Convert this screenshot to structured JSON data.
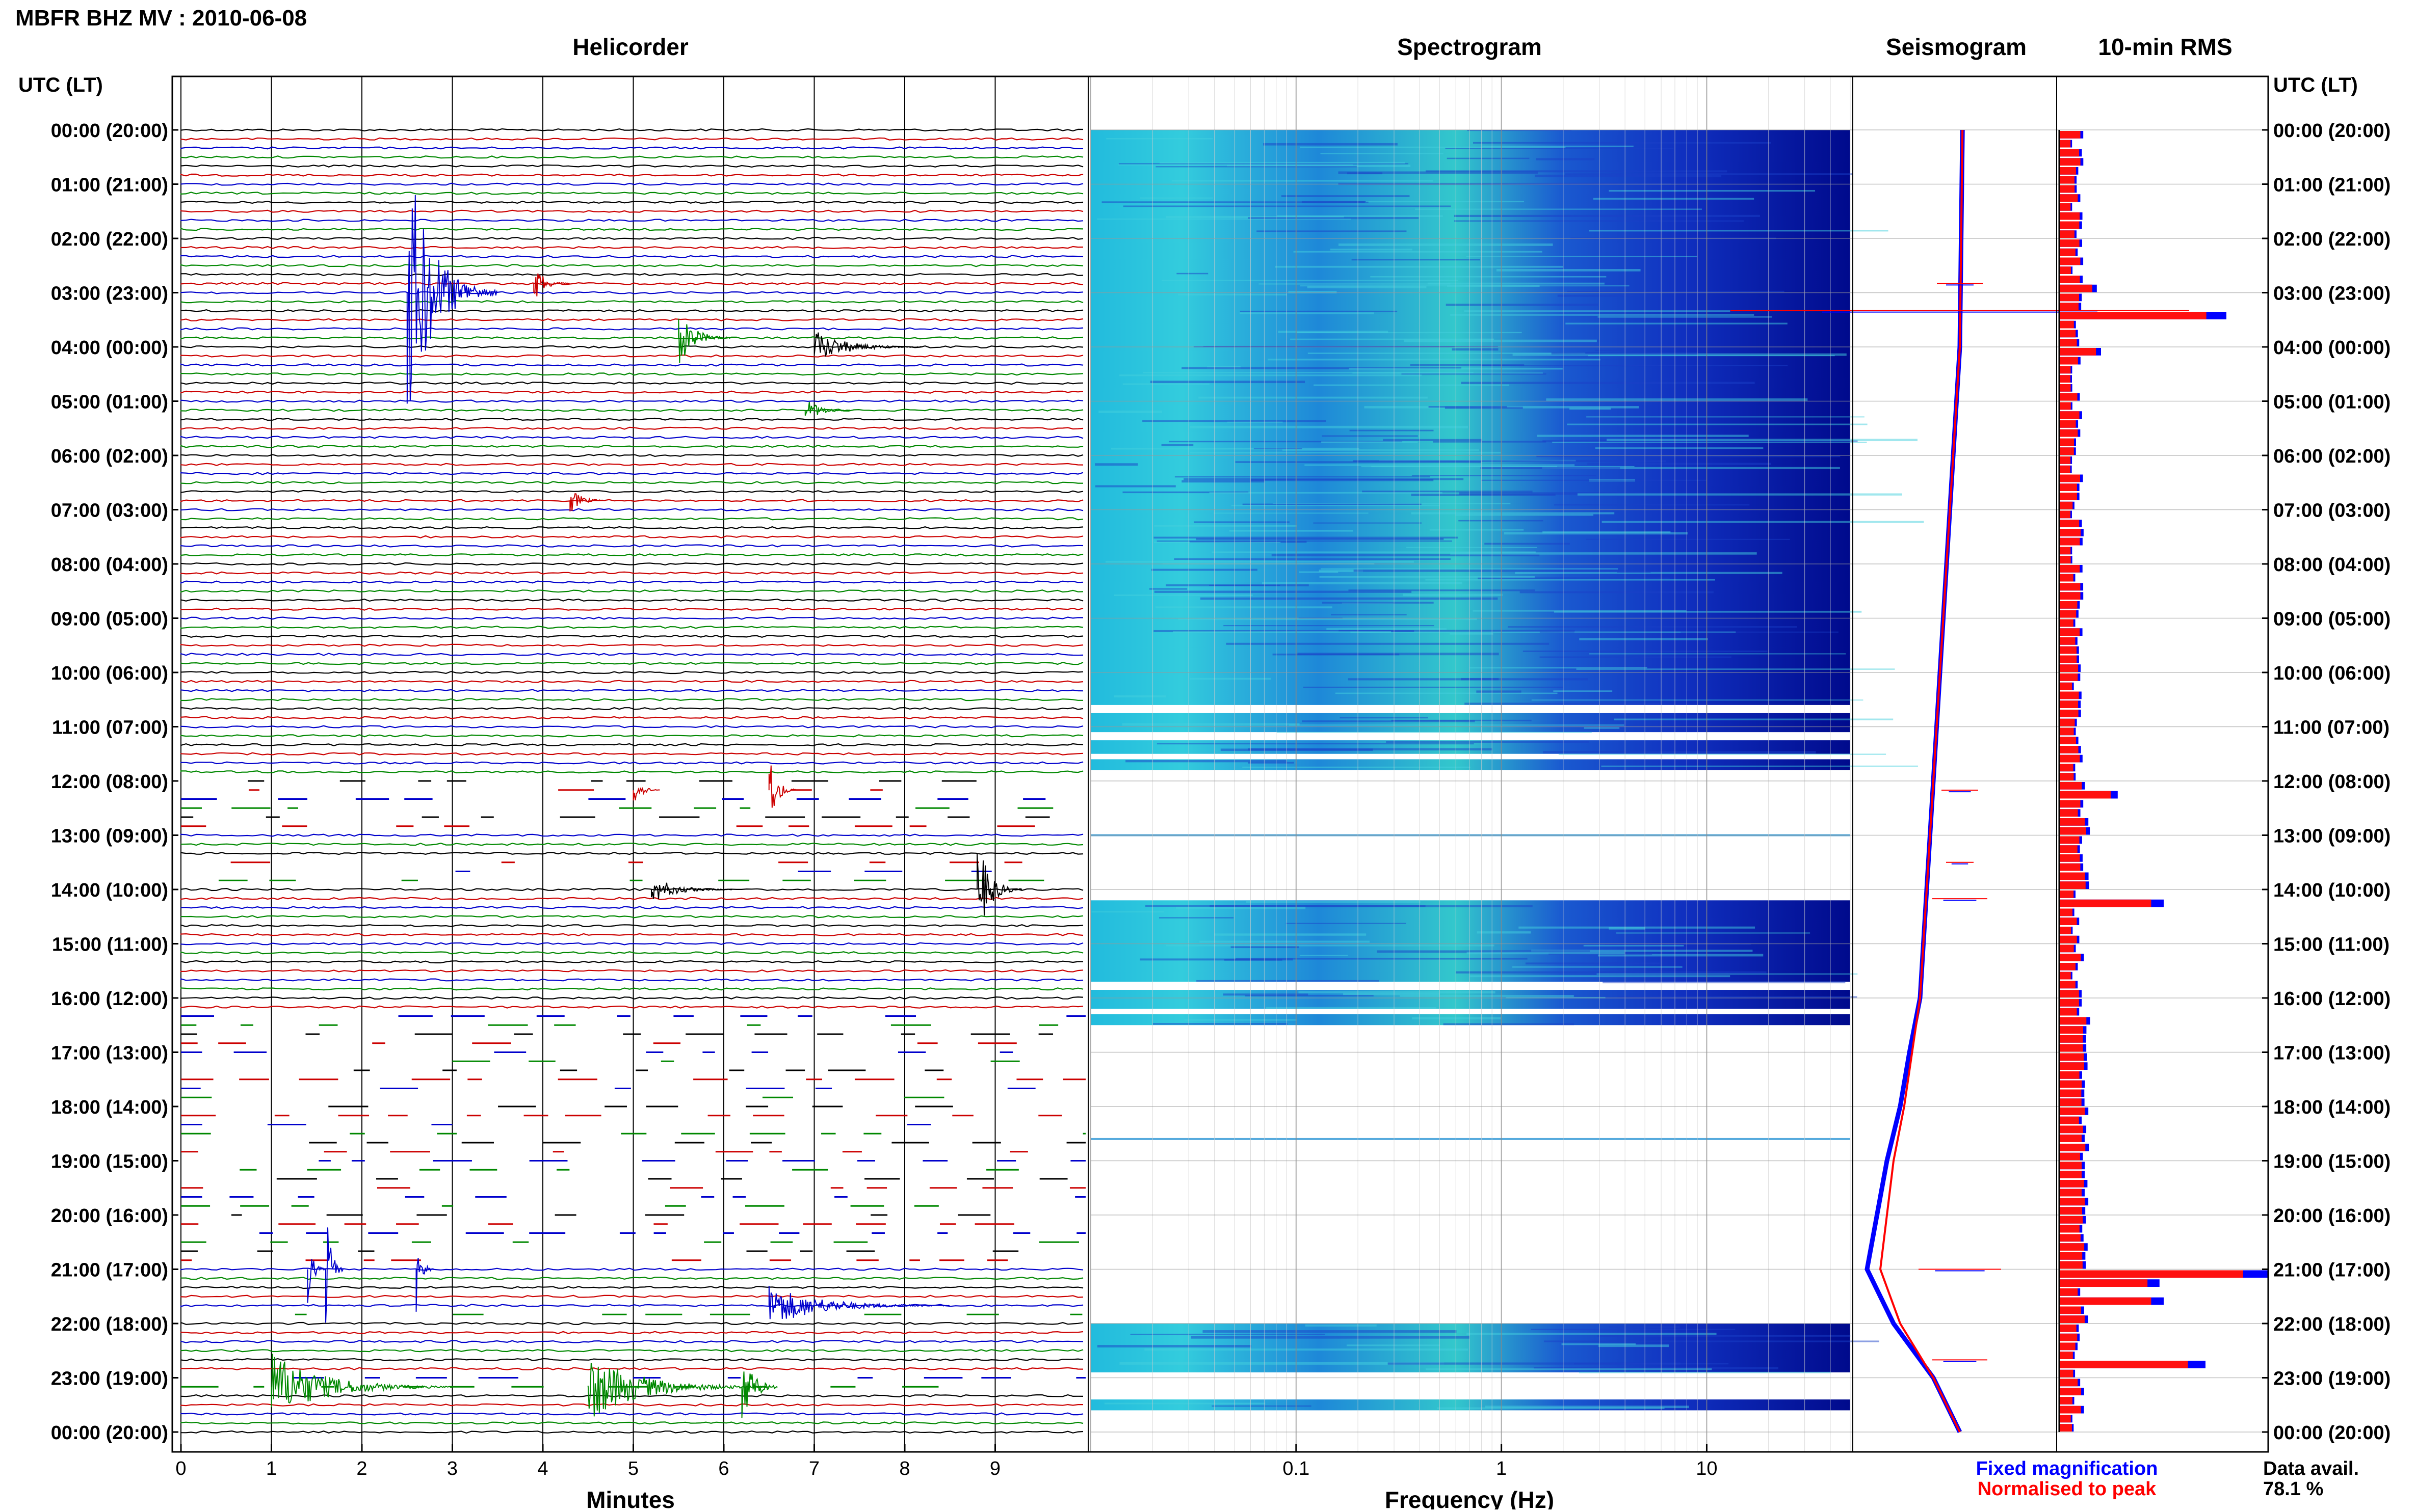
{
  "header": {
    "station_title": "MBFR BHZ MV : 2010-06-08",
    "utc_lt_label_left": "UTC (LT)",
    "utc_lt_label_right": "UTC (LT)"
  },
  "panels": {
    "helicorder_title": "Helicorder",
    "spectrogram_title": "Spectrogram",
    "seismogram_title": "Seismogram",
    "rms_title": "10-min RMS"
  },
  "time_labels": [
    "00:00 (20:00)",
    "01:00 (21:00)",
    "02:00 (22:00)",
    "03:00 (23:00)",
    "04:00 (00:00)",
    "05:00 (01:00)",
    "06:00 (02:00)",
    "07:00 (03:00)",
    "08:00 (04:00)",
    "09:00 (05:00)",
    "10:00 (06:00)",
    "11:00 (07:00)",
    "12:00 (08:00)",
    "13:00 (09:00)",
    "14:00 (10:00)",
    "15:00 (11:00)",
    "16:00 (12:00)",
    "17:00 (13:00)",
    "18:00 (14:00)",
    "19:00 (15:00)",
    "20:00 (16:00)",
    "21:00 (17:00)",
    "22:00 (18:00)",
    "23:00 (19:00)",
    "00:00 (20:00)"
  ],
  "legend": {
    "fixed_label": "Fixed magnification",
    "fixed_color": "#0000ff",
    "normalised_label": "Normalised to peak",
    "normalised_color": "#ff0000",
    "data_avail_label": "Data avail.",
    "data_avail_value": "78.1 %"
  },
  "chart_data": [
    {
      "type": "line",
      "name": "helicorder",
      "title": "Helicorder",
      "xlabel": "Minutes",
      "xlim": [
        0,
        10
      ],
      "x_ticks": [
        0,
        1,
        2,
        3,
        4,
        5,
        6,
        7,
        8,
        9
      ],
      "rows_per_hour": 6,
      "trace_colors": [
        "#000000",
        "#cc0000",
        "#0000cc",
        "#008800"
      ],
      "gaps": [
        [
          12.0,
          13.0
        ],
        [
          13.5,
          14.0
        ],
        [
          16.2,
          21.0
        ],
        [
          21.7,
          22.0
        ],
        [
          22.9,
          23.2
        ]
      ],
      "events": [
        {
          "hour": 3.0,
          "minute": 2.5,
          "amplitude": 1.0,
          "duration_min": 1.0
        },
        {
          "hour": 2.83,
          "minute": 3.9,
          "amplitude": 0.15,
          "duration_min": 0.4
        },
        {
          "hour": 3.83,
          "minute": 5.5,
          "amplitude": 0.2,
          "duration_min": 0.6
        },
        {
          "hour": 4.0,
          "minute": 7.0,
          "amplitude": 0.12,
          "duration_min": 1.2
        },
        {
          "hour": 5.17,
          "minute": 6.9,
          "amplitude": 0.1,
          "duration_min": 0.5
        },
        {
          "hour": 6.83,
          "minute": 4.3,
          "amplitude": 0.1,
          "duration_min": 0.4
        },
        {
          "hour": 12.17,
          "minute": 5.0,
          "amplitude": 0.12,
          "duration_min": 0.3
        },
        {
          "hour": 12.17,
          "minute": 6.5,
          "amplitude": 0.3,
          "duration_min": 0.3
        },
        {
          "hour": 14.0,
          "minute": 5.2,
          "amplitude": 0.1,
          "duration_min": 0.9
        },
        {
          "hour": 14.0,
          "minute": 8.8,
          "amplitude": 0.35,
          "duration_min": 0.5
        },
        {
          "hour": 21.0,
          "minute": 1.4,
          "amplitude": 0.25,
          "duration_min": 0.2
        },
        {
          "hour": 21.0,
          "minute": 1.6,
          "amplitude": 0.5,
          "duration_min": 0.2
        },
        {
          "hour": 21.0,
          "minute": 2.6,
          "amplitude": 0.3,
          "duration_min": 0.2
        },
        {
          "hour": 21.67,
          "minute": 6.5,
          "amplitude": 0.15,
          "duration_min": 2.0
        },
        {
          "hour": 23.17,
          "minute": 1.0,
          "amplitude": 0.25,
          "duration_min": 2.0
        },
        {
          "hour": 23.17,
          "minute": 4.5,
          "amplitude": 0.25,
          "duration_min": 2.0
        },
        {
          "hour": 23.17,
          "minute": 6.2,
          "amplitude": 0.35,
          "duration_min": 0.4
        }
      ]
    },
    {
      "type": "heatmap",
      "name": "spectrogram",
      "title": "Spectrogram",
      "xlabel": "Frequency (Hz)",
      "x_scale": "log",
      "xlim": [
        0.01,
        50
      ],
      "x_tick_labels": [
        "0.1",
        "1",
        "10"
      ],
      "x_ticks": [
        0.1,
        1,
        10
      ],
      "data_hours": [
        [
          0.0,
          10.6
        ],
        [
          10.75,
          11.1
        ],
        [
          11.25,
          11.5
        ],
        [
          11.6,
          11.8
        ],
        [
          14.2,
          15.7
        ],
        [
          15.85,
          16.2
        ],
        [
          16.3,
          16.5
        ],
        [
          22.0,
          22.9
        ],
        [
          23.4,
          23.6
        ]
      ],
      "thin_hours": [
        13.0,
        18.6
      ]
    },
    {
      "type": "line",
      "name": "seismogram",
      "title": "Seismogram",
      "series": [
        {
          "color": "#0000ff",
          "x": [
            0.02,
            0.01,
            0.0,
            -0.05,
            -0.1,
            -0.15,
            -0.2,
            -0.25,
            -0.3,
            -0.38,
            -0.45,
            -0.55,
            -0.7,
            -0.5,
            -0.2,
            0.0
          ],
          "y": [
            0,
            2,
            4,
            6,
            8,
            10,
            12,
            14,
            16,
            17,
            18,
            19,
            21,
            22,
            23,
            24
          ]
        },
        {
          "color": "#ff0000",
          "x": [
            0.02,
            0.01,
            0.0,
            -0.05,
            -0.1,
            -0.15,
            -0.2,
            -0.25,
            -0.3,
            -0.36,
            -0.42,
            -0.5,
            -0.6,
            -0.45,
            -0.2,
            0.0
          ],
          "y": [
            0,
            2,
            4,
            6,
            8,
            10,
            12,
            14,
            16,
            17,
            18,
            19,
            21,
            22,
            23,
            24
          ]
        }
      ]
    },
    {
      "type": "bar",
      "name": "rms",
      "title": "10-min RMS",
      "spikes": [
        {
          "hour": 2.83,
          "value": 0.18
        },
        {
          "hour": 3.33,
          "value": 0.8
        },
        {
          "hour": 4.0,
          "value": 0.2
        },
        {
          "hour": 12.17,
          "value": 0.28
        },
        {
          "hour": 14.17,
          "value": 0.5
        },
        {
          "hour": 21.0,
          "value": 1.0
        },
        {
          "hour": 21.17,
          "value": 0.48
        },
        {
          "hour": 21.5,
          "value": 0.5
        },
        {
          "hour": 22.67,
          "value": 0.7
        }
      ]
    }
  ]
}
